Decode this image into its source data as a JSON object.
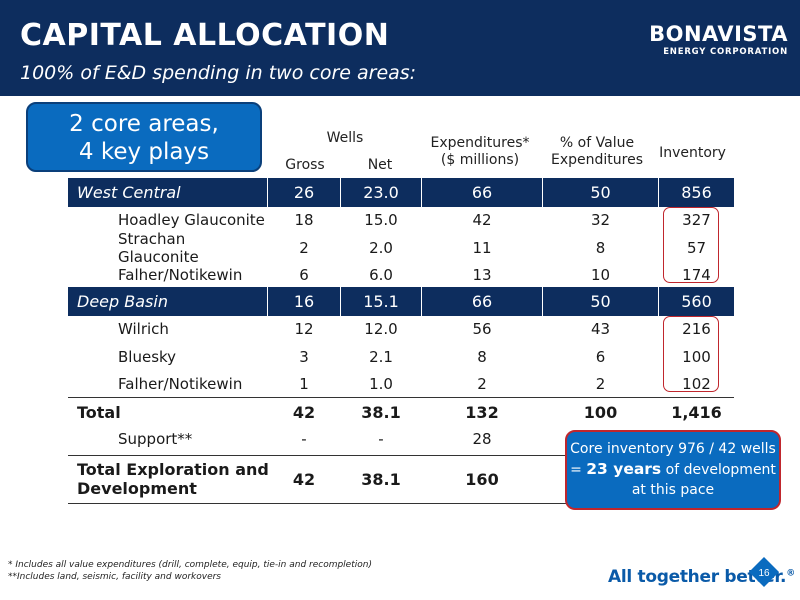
{
  "header": {
    "title": "CAPITAL ALLOCATION",
    "subtitle": "100% of E&D spending in two core areas:",
    "logo_main": "BONAVISTA",
    "logo_sub": "ENERGY CORPORATION"
  },
  "callout_top": {
    "line1": "2 core areas,",
    "line2": "4 key plays"
  },
  "columns": {
    "wells": "Wells",
    "gross": "Gross",
    "net": "Net",
    "expenditures_line1": "Expenditures*",
    "expenditures_line2": "($ millions)",
    "pct_line1": "% of Value",
    "pct_line2": "Expenditures",
    "inventory": "Inventory"
  },
  "west_central": {
    "label": "West Central",
    "gross": "26",
    "net": "23.0",
    "exp": "66",
    "pct": "50",
    "inv": "856"
  },
  "west_rows": [
    {
      "label": "Hoadley Glauconite",
      "gross": "18",
      "net": "15.0",
      "exp": "42",
      "pct": "32",
      "inv": "327"
    },
    {
      "label": "Strachan Glauconite",
      "gross": "2",
      "net": "2.0",
      "exp": "11",
      "pct": "8",
      "inv": "57"
    },
    {
      "label": "Falher/Notikewin",
      "gross": "6",
      "net": "6.0",
      "exp": "13",
      "pct": "10",
      "inv": "174"
    }
  ],
  "deep_basin": {
    "label": "Deep Basin",
    "gross": "16",
    "net": "15.1",
    "exp": "66",
    "pct": "50",
    "inv": "560"
  },
  "deep_rows": [
    {
      "label": "Wilrich",
      "gross": "12",
      "net": "12.0",
      "exp": "56",
      "pct": "43",
      "inv": "216"
    },
    {
      "label": "Bluesky",
      "gross": "3",
      "net": "2.1",
      "exp": "8",
      "pct": "6",
      "inv": "100"
    },
    {
      "label": "Falher/Notikewin",
      "gross": "1",
      "net": "1.0",
      "exp": "2",
      "pct": "2",
      "inv": "102"
    }
  ],
  "total": {
    "label": "Total",
    "gross": "42",
    "net": "38.1",
    "exp": "132",
    "pct": "100",
    "inv": "1,416"
  },
  "support": {
    "label": "Support**",
    "gross": "-",
    "net": "-",
    "exp": "28"
  },
  "total_ed": {
    "label_line1": "Total Exploration and",
    "label_line2": "Development",
    "gross": "42",
    "net": "38.1",
    "exp": "160"
  },
  "callout_bottom": {
    "line1": "Core inventory 976 / 42 wells",
    "line2_pre": "= ",
    "line2_bold": "23 years",
    "line2_post": " of development",
    "line3": "at this pace"
  },
  "footnotes": {
    "note1": "*   Includes all value expenditures (drill, complete, equip, tie-in and recompletion)",
    "note2": "**Includes land, seismic, facility and workovers"
  },
  "footer": {
    "slogan": "All together better.",
    "slogan_mark": "®",
    "page_number": "16"
  },
  "colors": {
    "navy": "#0d2d5e",
    "blue": "#0a6bbf",
    "red": "#c0262d"
  }
}
